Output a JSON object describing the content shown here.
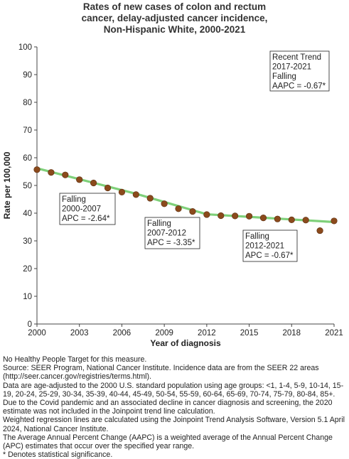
{
  "chart_data": {
    "type": "line",
    "title_lines": [
      "Rates of new cases of colon and rectum",
      "cancer, delay-adjusted cancer incidence,",
      "Non-Hispanic White,  2000-2021"
    ],
    "xlabel": "Year of diagnosis",
    "ylabel": "Rate per 100,000",
    "xlim": [
      2000,
      2021
    ],
    "ylim": [
      0,
      100
    ],
    "x_ticks": [
      2000,
      2003,
      2006,
      2009,
      2012,
      2015,
      2018,
      2021
    ],
    "y_ticks": [
      0,
      10,
      20,
      30,
      40,
      50,
      60,
      70,
      80,
      90,
      100
    ],
    "grid": false,
    "series": [
      {
        "kind": "observed",
        "color": "#8B4A1C",
        "x": [
          2000,
          2001,
          2002,
          2003,
          2004,
          2005,
          2006,
          2007,
          2008,
          2009,
          2010,
          2011,
          2012,
          2013,
          2014,
          2015,
          2016,
          2017,
          2018,
          2019,
          2020,
          2021
        ],
        "y": [
          55.7,
          54.7,
          53.8,
          52.1,
          50.9,
          49.1,
          47.6,
          46.7,
          45.4,
          43.4,
          41.6,
          40.6,
          39.5,
          39.1,
          39.0,
          38.9,
          38.3,
          37.9,
          37.6,
          37.5,
          33.7,
          37.2
        ]
      },
      {
        "kind": "joinpoint-trend",
        "color": "#7FD07A",
        "x": [
          2000,
          2007,
          2012,
          2021
        ],
        "y": [
          56.2,
          47.0,
          39.6,
          36.8
        ]
      }
    ],
    "annotations": [
      {
        "lines": [
          "Recent Trend",
          "2017-2021",
          "Falling",
          "AAPC = -0.67*"
        ],
        "anchor": "top-right"
      },
      {
        "lines": [
          "Falling",
          "2000-2007",
          "APC = -2.64*"
        ],
        "anchor": "segment-1"
      },
      {
        "lines": [
          "Falling",
          "2007-2012",
          "APC = -3.35*"
        ],
        "anchor": "segment-2"
      },
      {
        "lines": [
          "Falling",
          "2012-2021",
          "APC = -0.67*"
        ],
        "anchor": "segment-3"
      }
    ]
  },
  "footnotes": [
    "No Healthy People Target for this measure.",
    "Source: SEER Program, National Cancer Institute. Incidence data are from the SEER 22 areas (http://seer.cancer.gov/registries/terms.html).",
    "Data are age-adjusted to the 2000 U.S. standard population using age groups: <1, 1-4, 5-9, 10-14, 15-19, 20-24, 25-29, 30-34, 35-39, 40-44, 45-49, 50-54, 55-59, 60-64, 65-69, 70-74, 75-79, 80-84, 85+.",
    "Due to the Covid pandemic and an associated decline in cancer diagnosis and screening, the 2020 estimate was not included in the Joinpoint trend line calculation.",
    "Weighted regression lines are calculated using the Joinpoint Trend Analysis Software, Version 5.1 April 2024, National Cancer Institute.",
    "The Average Annual Percent Change (AAPC) is a weighted average of the Annual Percent Change (APC) estimates that occur over the specified year range.",
    "* Denotes statistical significance."
  ]
}
